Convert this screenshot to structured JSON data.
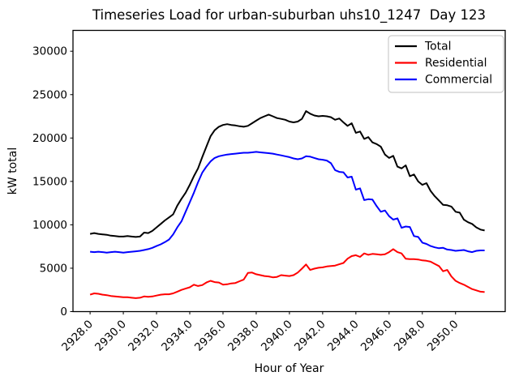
{
  "chart_data": {
    "type": "line",
    "title": "Timeseries Load for urban-suburban uhs10_1247  Day 123",
    "xlabel": "Hour of Year",
    "ylabel": "kW total",
    "grid": false,
    "legend_position": "upper right",
    "legend_border_color": "#cccccc",
    "background_color": "#ffffff",
    "xlim": [
      2926.97,
      2952.99
    ],
    "ylim": [
      0,
      32400
    ],
    "x_ticks": [
      2928,
      2930,
      2932,
      2934,
      2936,
      2938,
      2940,
      2942,
      2944,
      2946,
      2948,
      2950
    ],
    "x_tick_labels": [
      "2928.0",
      "2930.0",
      "2932.0",
      "2934.0",
      "2936.0",
      "2938.0",
      "2940.0",
      "2942.0",
      "2944.0",
      "2946.0",
      "2948.0",
      "2950.0"
    ],
    "y_ticks": [
      0,
      5000,
      10000,
      15000,
      20000,
      25000,
      30000
    ],
    "y_tick_labels": [
      "0",
      "5000",
      "10000",
      "15000",
      "20000",
      "25000",
      "30000"
    ],
    "x_start": 2928.0,
    "x_step": 0.25,
    "n_points": 96,
    "series": [
      {
        "name": "Total",
        "color": "#000000",
        "values": [
          8950,
          9050,
          8950,
          8900,
          8850,
          8750,
          8700,
          8650,
          8650,
          8700,
          8650,
          8600,
          8650,
          9100,
          9050,
          9300,
          9700,
          10100,
          10500,
          10850,
          11200,
          12200,
          13000,
          13700,
          14600,
          15600,
          16500,
          17800,
          19000,
          20200,
          20900,
          21300,
          21500,
          21600,
          21500,
          21450,
          21350,
          21300,
          21400,
          21700,
          22000,
          22300,
          22500,
          22700,
          22500,
          22300,
          22200,
          22100,
          21900,
          21800,
          21900,
          22200,
          23100,
          22800,
          22600,
          22500,
          22550,
          22500,
          22400,
          22100,
          22250,
          21800,
          21400,
          21700,
          20600,
          20750,
          19900,
          20100,
          19500,
          19300,
          19000,
          18100,
          17700,
          17950,
          16700,
          16500,
          16850,
          15600,
          15800,
          15000,
          14600,
          14800,
          13900,
          13300,
          12800,
          12300,
          12250,
          12100,
          11500,
          11400,
          10600,
          10300,
          10100,
          9700,
          9450,
          9350
        ]
      },
      {
        "name": "Residential",
        "color": "#ff0000",
        "values": [
          1950,
          2100,
          2050,
          1950,
          1900,
          1800,
          1750,
          1700,
          1650,
          1650,
          1600,
          1550,
          1600,
          1750,
          1700,
          1750,
          1850,
          1950,
          2000,
          2000,
          2100,
          2300,
          2500,
          2650,
          2800,
          3100,
          2950,
          3050,
          3350,
          3550,
          3400,
          3350,
          3100,
          3150,
          3250,
          3300,
          3500,
          3700,
          4450,
          4500,
          4300,
          4200,
          4100,
          4050,
          3950,
          4000,
          4200,
          4150,
          4100,
          4200,
          4500,
          4950,
          5430,
          4800,
          4950,
          5050,
          5100,
          5200,
          5250,
          5300,
          5450,
          5600,
          6100,
          6400,
          6500,
          6300,
          6700,
          6550,
          6650,
          6600,
          6550,
          6600,
          6850,
          7200,
          6850,
          6700,
          6100,
          6050,
          6050,
          6000,
          5900,
          5850,
          5750,
          5500,
          5250,
          4650,
          4800,
          4050,
          3550,
          3300,
          3100,
          2850,
          2600,
          2450,
          2300,
          2250
        ]
      },
      {
        "name": "Commercial",
        "color": "#0000ff",
        "values": [
          6900,
          6850,
          6900,
          6850,
          6800,
          6850,
          6900,
          6850,
          6800,
          6850,
          6900,
          6950,
          7000,
          7100,
          7200,
          7350,
          7550,
          7750,
          8000,
          8300,
          8900,
          9700,
          10400,
          11500,
          12600,
          13700,
          14900,
          16000,
          16700,
          17300,
          17700,
          17900,
          18000,
          18100,
          18150,
          18200,
          18250,
          18300,
          18300,
          18350,
          18400,
          18350,
          18300,
          18250,
          18200,
          18100,
          18000,
          17900,
          17800,
          17650,
          17550,
          17650,
          17900,
          17850,
          17700,
          17550,
          17500,
          17400,
          17100,
          16300,
          16100,
          16050,
          15450,
          15550,
          14050,
          14200,
          12850,
          12950,
          12900,
          12150,
          11500,
          11650,
          11000,
          10600,
          10750,
          9650,
          9800,
          9750,
          8700,
          8600,
          7950,
          7800,
          7550,
          7400,
          7300,
          7350,
          7150,
          7100,
          7000,
          7050,
          7100,
          6950,
          6850,
          7000,
          7050,
          7050
        ]
      }
    ]
  }
}
